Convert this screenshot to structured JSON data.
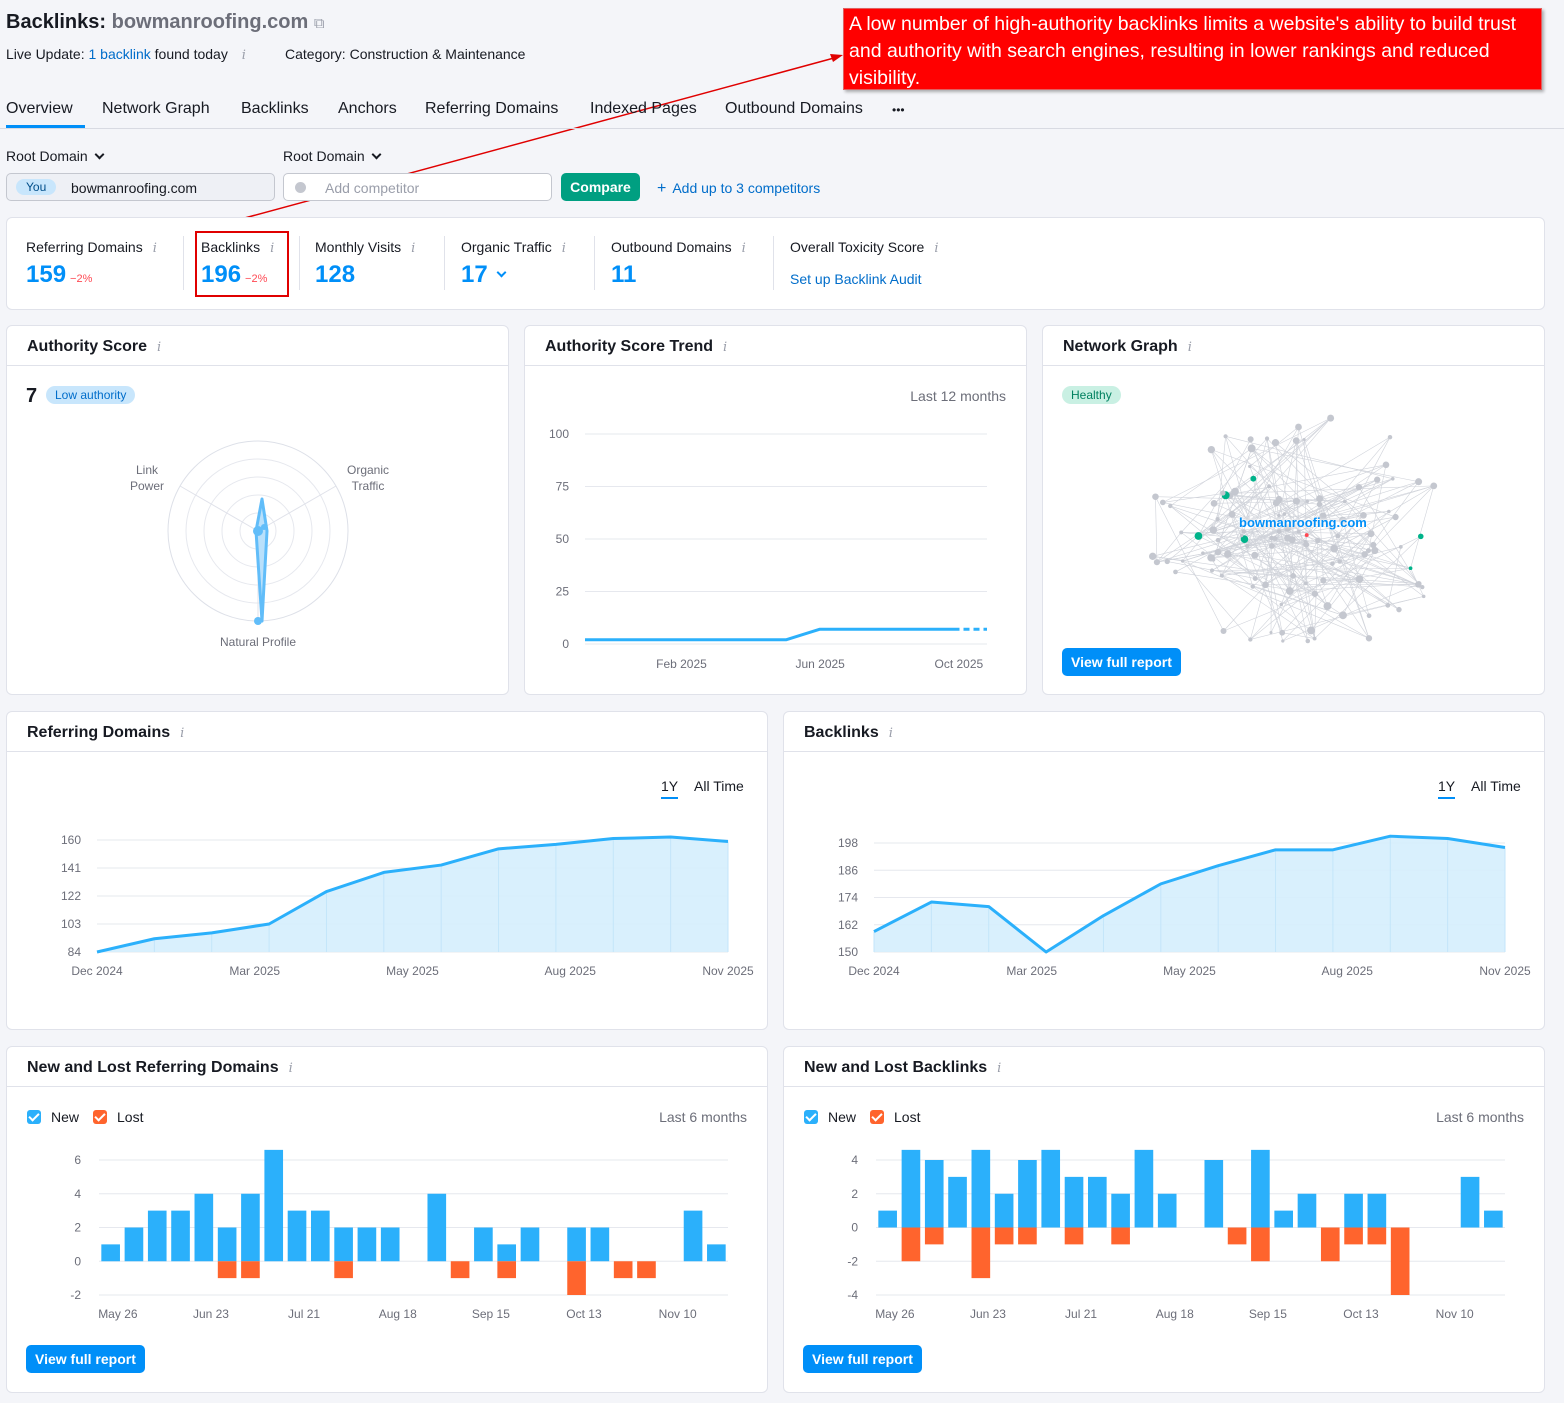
{
  "header": {
    "title_prefix": "Backlinks:",
    "domain": "bowmanroofing.com",
    "live_update_label": "Live Update:",
    "live_update_link": "1 backlink",
    "live_update_suffix": "found today",
    "category": "Category: Construction & Maintenance"
  },
  "annotation": {
    "text": "A low number of high-authority backlinks limits a website's ability to build trust and authority with search engines, resulting in lower rankings and reduced visibility.",
    "color": "#ff0000"
  },
  "tabs": [
    "Overview",
    "Network Graph",
    "Backlinks",
    "Anchors",
    "Referring Domains",
    "Indexed Pages",
    "Outbound Domains",
    "•••"
  ],
  "compare": {
    "root_domain_1": "Root Domain",
    "root_domain_2": "Root Domain",
    "you_badge": "You",
    "domain_value": "bowmanroofing.com",
    "competitor_placeholder": "Add competitor",
    "compare_button": "Compare",
    "add_competitors": "Add up to 3 competitors"
  },
  "metrics": {
    "referring_domains": {
      "label": "Referring Domains",
      "value": "159",
      "delta": "−2%"
    },
    "backlinks": {
      "label": "Backlinks",
      "value": "196",
      "delta": "−2%"
    },
    "monthly_visits": {
      "label": "Monthly Visits",
      "value": "128"
    },
    "organic_traffic": {
      "label": "Organic Traffic",
      "value": "17"
    },
    "outbound_domains": {
      "label": "Outbound Domains",
      "value": "11"
    },
    "toxicity": {
      "label": "Overall Toxicity Score",
      "link": "Set up Backlink Audit"
    }
  },
  "authority_score": {
    "title": "Authority Score",
    "score": "7",
    "badge": "Low authority",
    "axis_link_power": [
      "Link",
      "Power"
    ],
    "axis_organic": [
      "Organic",
      "Traffic"
    ],
    "axis_natural": "Natural Profile"
  },
  "authority_trend": {
    "title": "Authority Score Trend",
    "period": "Last 12 months"
  },
  "network_graph": {
    "title": "Network Graph",
    "badge": "Healthy",
    "center_label": "bowmanroofing.com",
    "button": "View full report"
  },
  "referring_domains_card": {
    "title": "Referring Domains",
    "range_1y": "1Y",
    "range_all": "All Time"
  },
  "backlinks_card": {
    "title": "Backlinks",
    "range_1y": "1Y",
    "range_all": "All Time"
  },
  "new_lost_domains": {
    "title": "New and Lost Referring Domains",
    "new": "New",
    "lost": "Lost",
    "period": "Last 6 months",
    "button": "View full report"
  },
  "new_lost_backlinks": {
    "title": "New and Lost Backlinks",
    "new": "New",
    "lost": "Lost",
    "period": "Last 6 months",
    "button": "View full report"
  },
  "colors": {
    "accent": "#008ff8",
    "new": "#2bb0fb",
    "lost": "#ff642d",
    "area": "#d5eefd",
    "green_button": "#009f81"
  },
  "chart_data": [
    {
      "id": "authority_trend",
      "type": "line",
      "yticks": [
        0,
        25,
        50,
        75,
        100
      ],
      "ylim": [
        0,
        100
      ],
      "xtick_labels": [
        "Feb 2025",
        "Jun 2025",
        "Oct 2025"
      ],
      "series": [
        {
          "values": [
            2,
            2,
            2,
            2,
            2,
            2,
            2,
            7,
            7,
            7,
            7,
            7,
            7
          ]
        }
      ]
    },
    {
      "id": "referring_domains",
      "type": "area",
      "yticks": [
        84,
        103,
        122,
        141,
        160
      ],
      "ylim": [
        84,
        160
      ],
      "xtick_labels": [
        "Dec 2024",
        "Mar 2025",
        "May 2025",
        "Aug 2025",
        "Nov 2025"
      ],
      "series": [
        {
          "values": [
            84,
            93,
            97,
            103,
            125,
            138,
            143,
            154,
            157,
            161,
            162,
            159
          ]
        }
      ]
    },
    {
      "id": "backlinks",
      "type": "area",
      "yticks": [
        150,
        162,
        174,
        186,
        198
      ],
      "ylim": [
        150,
        198
      ],
      "xtick_labels": [
        "Dec 2024",
        "Mar 2025",
        "May 2025",
        "Aug 2025",
        "Nov 2025"
      ],
      "series": [
        {
          "values": [
            159,
            172,
            170,
            150,
            166,
            180,
            188,
            195,
            195,
            201,
            200,
            196
          ]
        }
      ]
    },
    {
      "id": "new_lost_domains",
      "type": "bar",
      "yticks": [
        -2,
        0,
        2,
        4,
        6
      ],
      "ylim": [
        -2,
        6
      ],
      "xtick_labels": [
        "May 26",
        "Jun 23",
        "Jul 21",
        "Aug 18",
        "Sep 15",
        "Oct 13",
        "Nov 10"
      ],
      "series": [
        {
          "name": "New",
          "values": [
            1,
            2,
            3,
            3,
            4,
            2,
            4,
            6.6,
            3,
            3,
            2,
            2,
            2,
            0,
            4,
            0,
            2,
            1,
            2,
            0,
            2,
            2,
            0,
            0,
            0,
            3,
            1
          ]
        },
        {
          "name": "Lost",
          "values": [
            0,
            0,
            0,
            0,
            0,
            -1,
            -1,
            0,
            0,
            0,
            -1,
            0,
            0,
            0,
            0,
            -1,
            0,
            -1,
            0,
            0,
            -2,
            0,
            -1,
            -1,
            0,
            0,
            0
          ]
        }
      ]
    },
    {
      "id": "new_lost_backlinks",
      "type": "bar",
      "yticks": [
        -4,
        -2,
        0,
        2,
        4
      ],
      "ylim": [
        -4,
        4
      ],
      "xtick_labels": [
        "May 26",
        "Jun 23",
        "Jul 21",
        "Aug 18",
        "Sep 15",
        "Oct 13",
        "Nov 10"
      ],
      "series": [
        {
          "name": "New",
          "values": [
            1,
            4.6,
            4,
            3,
            4.6,
            2,
            4,
            4.6,
            3,
            3,
            2,
            4.6,
            2,
            0,
            4,
            0,
            4.6,
            1,
            2,
            0,
            2,
            2,
            0,
            0,
            0,
            3,
            1
          ]
        },
        {
          "name": "Lost",
          "values": [
            0,
            -2,
            -1,
            0,
            -3,
            -1,
            -1,
            0,
            -1,
            0,
            -1,
            0,
            0,
            0,
            0,
            -1,
            -2,
            0,
            0,
            -2,
            -1,
            -1,
            -4,
            0,
            0,
            0,
            0
          ]
        }
      ]
    }
  ]
}
